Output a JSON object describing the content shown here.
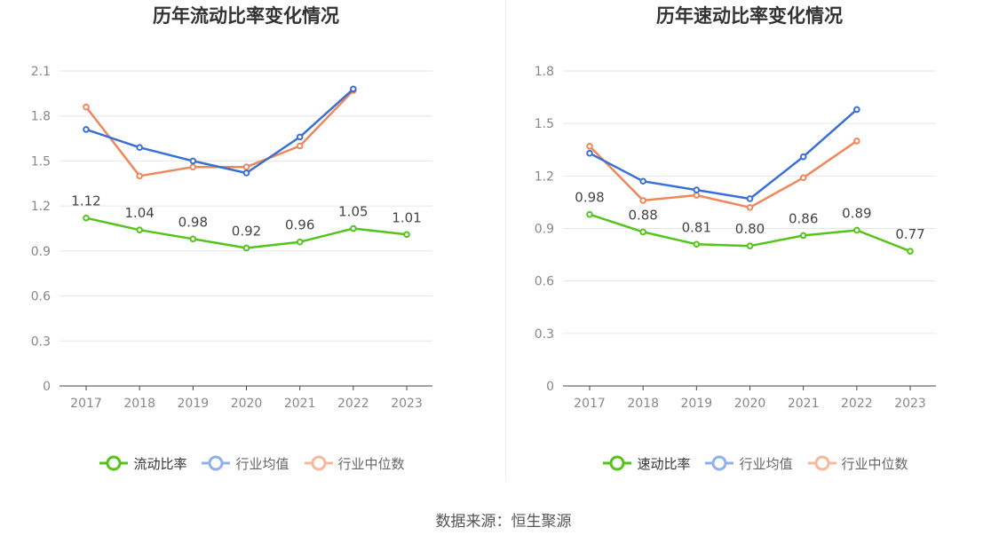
{
  "source_text": "数据来源：恒生聚源",
  "charts": [
    {
      "title": "历年流动比率变化情况",
      "legend": [
        {
          "label": "流动比率",
          "color": "#52c41a"
        },
        {
          "label": "行业均值",
          "color": "#3a6fd8"
        },
        {
          "label": "行业中位数",
          "color": "#f0875a"
        }
      ]
    },
    {
      "title": "历年速动比率变化情况",
      "legend": [
        {
          "label": "速动比率",
          "color": "#52c41a"
        },
        {
          "label": "行业均值",
          "color": "#3a6fd8"
        },
        {
          "label": "行业中位数",
          "color": "#f0875a"
        }
      ]
    }
  ],
  "chart_data": [
    {
      "type": "line",
      "title": "历年流动比率变化情况",
      "categories": [
        "2017",
        "2018",
        "2019",
        "2020",
        "2021",
        "2022",
        "2023"
      ],
      "ylim": [
        0,
        2.1
      ],
      "yticks": [
        "0",
        "0.3",
        "0.6",
        "0.9",
        "1.2",
        "1.5",
        "1.8",
        "2.1"
      ],
      "grid": true,
      "legend_position": "bottom",
      "series": [
        {
          "name": "流动比率",
          "color": "#52c41a",
          "values": [
            1.12,
            1.04,
            0.98,
            0.92,
            0.96,
            1.05,
            1.01
          ],
          "labels": [
            "1.12",
            "1.04",
            "0.98",
            "0.92",
            "0.96",
            "1.05",
            "1.01"
          ]
        },
        {
          "name": "行业均值",
          "color": "#3a6fd8",
          "values": [
            1.71,
            1.59,
            1.5,
            1.42,
            1.66,
            1.98,
            null
          ]
        },
        {
          "name": "行业中位数",
          "color": "#f0875a",
          "values": [
            1.86,
            1.4,
            1.46,
            1.46,
            1.6,
            1.97,
            null
          ]
        }
      ]
    },
    {
      "type": "line",
      "title": "历年速动比率变化情况",
      "categories": [
        "2017",
        "2018",
        "2019",
        "2020",
        "2021",
        "2022",
        "2023"
      ],
      "ylim": [
        0,
        1.8
      ],
      "yticks": [
        "0",
        "0.3",
        "0.6",
        "0.9",
        "1.2",
        "1.5",
        "1.8"
      ],
      "grid": true,
      "legend_position": "bottom",
      "series": [
        {
          "name": "速动比率",
          "color": "#52c41a",
          "values": [
            0.98,
            0.88,
            0.81,
            0.8,
            0.86,
            0.89,
            0.77
          ],
          "labels": [
            "0.98",
            "0.88",
            "0.81",
            "0.80",
            "0.86",
            "0.89",
            "0.77"
          ]
        },
        {
          "name": "行业均值",
          "color": "#3a6fd8",
          "values": [
            1.33,
            1.17,
            1.12,
            1.07,
            1.31,
            1.58,
            null
          ]
        },
        {
          "name": "行业中位数",
          "color": "#f0875a",
          "values": [
            1.37,
            1.06,
            1.09,
            1.02,
            1.19,
            1.4,
            null
          ]
        }
      ]
    }
  ]
}
